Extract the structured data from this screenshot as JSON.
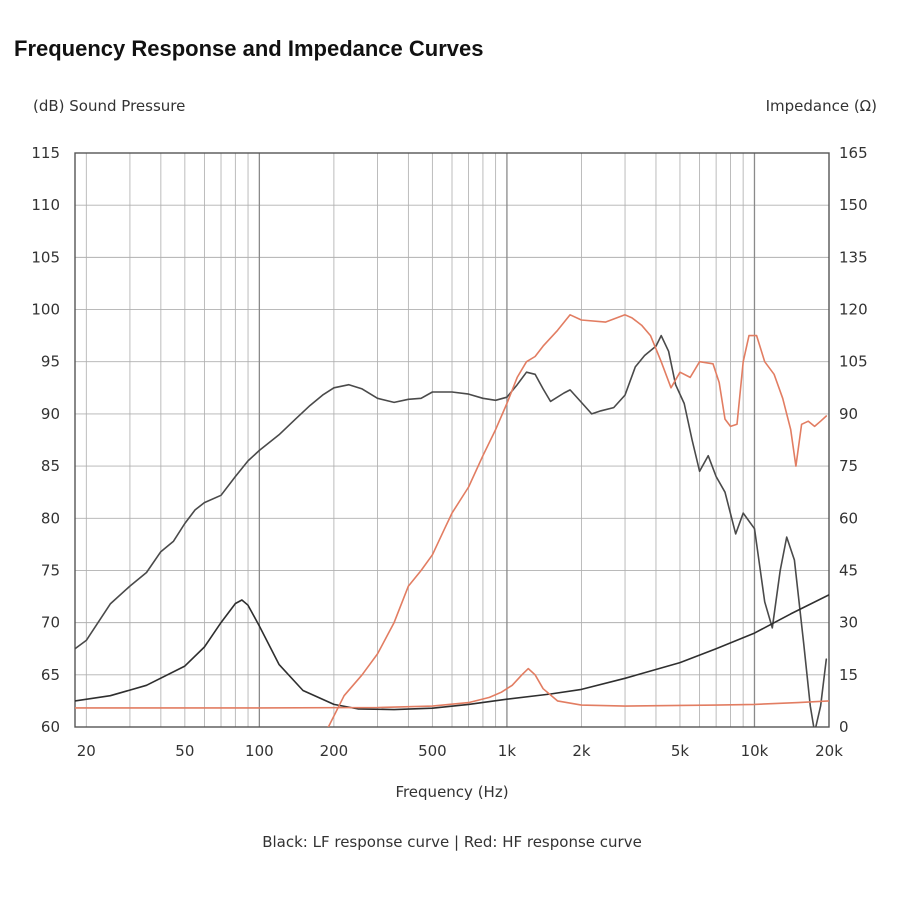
{
  "chart_data": {
    "type": "line",
    "title": "Frequency Response and Impedance Curves",
    "xlabel": "Frequency (Hz)",
    "ylabel_left": "(dB) Sound Pressure",
    "ylabel_right": "Impedance (Ω)",
    "caption": "Black: LF response curve  |  Red: HF response curve",
    "x_scale": "log",
    "xlim": [
      18,
      20000
    ],
    "ylim_left": [
      60,
      115
    ],
    "ylim_right": [
      0,
      165
    ],
    "x_ticks": [
      {
        "value": 20,
        "label": "20"
      },
      {
        "value": 50,
        "label": "50"
      },
      {
        "value": 100,
        "label": "100"
      },
      {
        "value": 200,
        "label": "200"
      },
      {
        "value": 500,
        "label": "500"
      },
      {
        "value": 1000,
        "label": "1k"
      },
      {
        "value": 2000,
        "label": "2k"
      },
      {
        "value": 5000,
        "label": "5k"
      },
      {
        "value": 10000,
        "label": "10k"
      },
      {
        "value": 20000,
        "label": "20k"
      }
    ],
    "y_ticks_left": [
      60,
      65,
      70,
      75,
      80,
      85,
      90,
      95,
      100,
      105,
      110,
      115
    ],
    "y_ticks_right": [
      0,
      15,
      30,
      45,
      60,
      75,
      90,
      105,
      120,
      135,
      150,
      165
    ],
    "grid": true,
    "series": [
      {
        "name": "LF sound pressure",
        "axis": "left",
        "color": "#4a4a4a",
        "points": [
          [
            18,
            67.5
          ],
          [
            20,
            68.3
          ],
          [
            25,
            71.8
          ],
          [
            30,
            73.5
          ],
          [
            35,
            74.8
          ],
          [
            40,
            76.8
          ],
          [
            45,
            77.8
          ],
          [
            50,
            79.5
          ],
          [
            55,
            80.8
          ],
          [
            60,
            81.5
          ],
          [
            70,
            82.2
          ],
          [
            80,
            84.0
          ],
          [
            90,
            85.5
          ],
          [
            100,
            86.5
          ],
          [
            120,
            88.0
          ],
          [
            140,
            89.5
          ],
          [
            160,
            90.8
          ],
          [
            180,
            91.8
          ],
          [
            200,
            92.5
          ],
          [
            230,
            92.8
          ],
          [
            260,
            92.4
          ],
          [
            300,
            91.5
          ],
          [
            350,
            91.1
          ],
          [
            400,
            91.4
          ],
          [
            450,
            91.5
          ],
          [
            500,
            92.1
          ],
          [
            600,
            92.1
          ],
          [
            700,
            91.9
          ],
          [
            800,
            91.5
          ],
          [
            900,
            91.3
          ],
          [
            1000,
            91.6
          ],
          [
            1100,
            92.8
          ],
          [
            1200,
            94.0
          ],
          [
            1300,
            93.8
          ],
          [
            1400,
            92.4
          ],
          [
            1500,
            91.2
          ],
          [
            1700,
            92.0
          ],
          [
            1800,
            92.3
          ],
          [
            2000,
            91.1
          ],
          [
            2200,
            90.0
          ],
          [
            2400,
            90.3
          ],
          [
            2700,
            90.6
          ],
          [
            3000,
            91.8
          ],
          [
            3300,
            94.5
          ],
          [
            3600,
            95.6
          ],
          [
            4000,
            96.5
          ],
          [
            4200,
            97.5
          ],
          [
            4500,
            96.0
          ],
          [
            4800,
            92.8
          ],
          [
            5200,
            91.0
          ],
          [
            5600,
            87.5
          ],
          [
            6000,
            84.5
          ],
          [
            6500,
            86.0
          ],
          [
            7000,
            84.0
          ],
          [
            7600,
            82.5
          ],
          [
            8400,
            78.5
          ],
          [
            9000,
            80.5
          ],
          [
            10000,
            79.0
          ],
          [
            11000,
            72.0
          ],
          [
            11800,
            69.5
          ],
          [
            12700,
            75.0
          ],
          [
            13500,
            78.2
          ],
          [
            14500,
            76.0
          ],
          [
            15800,
            68.0
          ],
          [
            16800,
            62.0
          ],
          [
            17500,
            59.5
          ],
          [
            18500,
            62.0
          ],
          [
            19500,
            66.5
          ]
        ]
      },
      {
        "name": "LF impedance",
        "axis": "right",
        "color": "#2f2f2f",
        "points": [
          [
            18,
            7.5
          ],
          [
            25,
            9.0
          ],
          [
            35,
            12.0
          ],
          [
            50,
            17.5
          ],
          [
            60,
            23.0
          ],
          [
            70,
            30.0
          ],
          [
            80,
            35.5
          ],
          [
            85,
            36.5
          ],
          [
            90,
            35.0
          ],
          [
            100,
            29.0
          ],
          [
            120,
            18.0
          ],
          [
            150,
            10.5
          ],
          [
            200,
            6.5
          ],
          [
            250,
            5.2
          ],
          [
            350,
            5.0
          ],
          [
            500,
            5.4
          ],
          [
            700,
            6.5
          ],
          [
            1000,
            8.0
          ],
          [
            1500,
            9.5
          ],
          [
            2000,
            10.8
          ],
          [
            3000,
            14.0
          ],
          [
            5000,
            18.5
          ],
          [
            7000,
            22.5
          ],
          [
            10000,
            27.0
          ],
          [
            14000,
            32.5
          ],
          [
            20000,
            38.0
          ]
        ]
      },
      {
        "name": "HF sound pressure",
        "axis": "left",
        "color": "#e27d62",
        "points": [
          [
            190,
            60.0
          ],
          [
            220,
            63.0
          ],
          [
            260,
            65.0
          ],
          [
            300,
            67.0
          ],
          [
            350,
            70.0
          ],
          [
            400,
            73.5
          ],
          [
            450,
            75.0
          ],
          [
            500,
            76.5
          ],
          [
            560,
            79.0
          ],
          [
            600,
            80.5
          ],
          [
            700,
            83.0
          ],
          [
            800,
            86.0
          ],
          [
            900,
            88.5
          ],
          [
            1000,
            91.0
          ],
          [
            1100,
            93.5
          ],
          [
            1200,
            95.0
          ],
          [
            1300,
            95.5
          ],
          [
            1400,
            96.5
          ],
          [
            1600,
            98.0
          ],
          [
            1800,
            99.5
          ],
          [
            2000,
            99.0
          ],
          [
            2500,
            98.8
          ],
          [
            3000,
            99.5
          ],
          [
            3200,
            99.2
          ],
          [
            3500,
            98.5
          ],
          [
            3800,
            97.5
          ],
          [
            4200,
            95.0
          ],
          [
            4600,
            92.5
          ],
          [
            5000,
            94.0
          ],
          [
            5500,
            93.5
          ],
          [
            6000,
            95.0
          ],
          [
            6800,
            94.8
          ],
          [
            7200,
            93.0
          ],
          [
            7600,
            89.5
          ],
          [
            8000,
            88.8
          ],
          [
            8500,
            89.0
          ],
          [
            9000,
            95.0
          ],
          [
            9500,
            97.5
          ],
          [
            10200,
            97.5
          ],
          [
            11000,
            95.0
          ],
          [
            12000,
            93.8
          ],
          [
            13000,
            91.5
          ],
          [
            14000,
            88.5
          ],
          [
            14700,
            85.0
          ],
          [
            15500,
            89.0
          ],
          [
            16500,
            89.3
          ],
          [
            17500,
            88.8
          ],
          [
            18500,
            89.3
          ],
          [
            19500,
            89.8
          ]
        ]
      },
      {
        "name": "HF impedance",
        "axis": "right",
        "color": "#e27d62",
        "points": [
          [
            18,
            5.5
          ],
          [
            100,
            5.5
          ],
          [
            300,
            5.6
          ],
          [
            500,
            6.0
          ],
          [
            700,
            7.0
          ],
          [
            850,
            8.5
          ],
          [
            950,
            10.0
          ],
          [
            1050,
            12.0
          ],
          [
            1150,
            15.0
          ],
          [
            1220,
            16.8
          ],
          [
            1300,
            15.0
          ],
          [
            1400,
            11.0
          ],
          [
            1600,
            7.5
          ],
          [
            2000,
            6.3
          ],
          [
            3000,
            6.0
          ],
          [
            5000,
            6.2
          ],
          [
            7000,
            6.3
          ],
          [
            10000,
            6.5
          ],
          [
            15000,
            7.0
          ],
          [
            20000,
            7.5
          ]
        ]
      }
    ]
  }
}
